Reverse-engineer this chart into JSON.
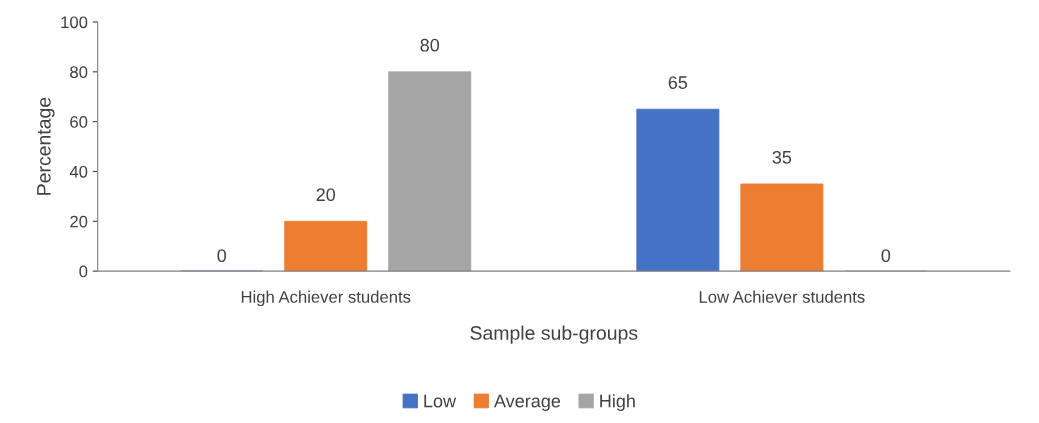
{
  "chart_data": {
    "type": "bar",
    "xlabel": "Sample sub-groups",
    "ylabel": "Percentage",
    "categories": [
      "High Achiever students",
      "Low Achiever students"
    ],
    "series": [
      {
        "name": "Low",
        "color": "#4472c4",
        "values": [
          0,
          65
        ]
      },
      {
        "name": "Average",
        "color": "#ed7d31",
        "values": [
          20,
          35
        ]
      },
      {
        "name": "High",
        "color": "#a5a5a5",
        "values": [
          80,
          0
        ]
      }
    ],
    "ylim": [
      0,
      100
    ],
    "yticks": [
      0,
      20,
      40,
      60,
      80,
      100
    ],
    "grid": false,
    "legend": "bottom",
    "data_labels": true
  }
}
